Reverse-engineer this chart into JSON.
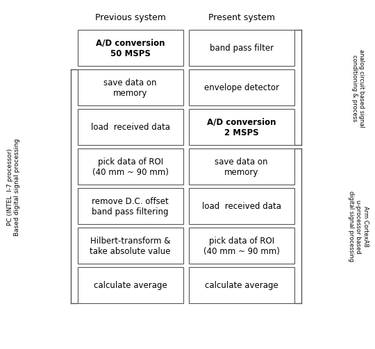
{
  "title_left": "Previous system",
  "title_right": "Present system",
  "left_label": "PC (INTEL  I-7 processor)\nBased digital signal processing",
  "right_label_top": "analog circuit based signal\nconditioning & process",
  "right_label_bottom": "Arm CortexA8\nu-processor based\ndigital signal processing",
  "left_boxes": [
    {
      "text": "A/D conversion\n50 MSPS",
      "bold": true
    },
    {
      "text": "save data on\nmemory",
      "bold": false
    },
    {
      "text": "load  received data",
      "bold": false
    },
    {
      "text": "pick data of ROI\n(40 mm ~ 90 mm)",
      "bold": false
    },
    {
      "text": "remove D.C. offset\nband pass filtering",
      "bold": false
    },
    {
      "text": "Hilbert-transform &\ntake absolute value",
      "bold": false
    },
    {
      "text": "calculate average",
      "bold": false
    }
  ],
  "right_boxes": [
    {
      "text": "band pass filter",
      "bold": false
    },
    {
      "text": "envelope detector",
      "bold": false
    },
    {
      "text": "A/D conversion\n2 MSPS",
      "bold": true
    },
    {
      "text": "save data on\nmemory",
      "bold": false
    },
    {
      "text": "load  received data",
      "bold": false
    },
    {
      "text": "pick data of ROI\n(40 mm ~ 90 mm)",
      "bold": false
    },
    {
      "text": "calculate average",
      "bold": false
    }
  ],
  "bg_color": "#ffffff",
  "box_edge_color": "#555555",
  "text_color": "#000000",
  "bracket_color": "#555555"
}
